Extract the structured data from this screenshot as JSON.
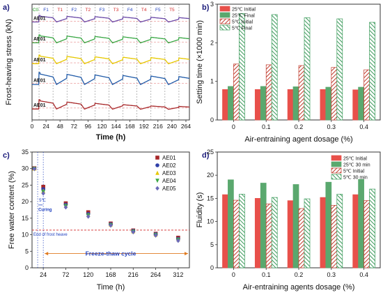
{
  "chart_data": [
    {
      "panel": "a)",
      "type": "line",
      "xlabel": "Time (h)",
      "ylabel": "Frost-heaving stress (kN)",
      "xlim": [
        0,
        270
      ],
      "xticks": [
        0,
        24,
        48,
        72,
        96,
        120,
        144,
        168,
        192,
        216,
        240,
        264
      ],
      "phase_labels": [
        "C0",
        "F1",
        "T1",
        "F2",
        "T2",
        "F3",
        "T3",
        "F4",
        "T4",
        "F5",
        "T5"
      ],
      "phase_colors": [
        "#1a9a1a",
        "#1e3fbf",
        "#d42a2a",
        "#1e3fbf",
        "#d42a2a",
        "#1e3fbf",
        "#d42a2a",
        "#1e3fbf",
        "#d42a2a",
        "#1e3fbf",
        "#d42a2a"
      ],
      "phase_boundaries": [
        12,
        36,
        60,
        84,
        108,
        132,
        156,
        180,
        204,
        228,
        252
      ],
      "series": [
        {
          "name": "AE01",
          "color": "#6b4aa8"
        },
        {
          "name": "AE01",
          "color": "#3aa845"
        },
        {
          "name": "AE01",
          "color": "#e6c800"
        },
        {
          "name": "AE01",
          "color": "#1f5aa8"
        },
        {
          "name": "AE01",
          "color": "#a8282a"
        }
      ]
    },
    {
      "panel": "b)",
      "type": "bar",
      "xlabel": "Air-entraining agent dosage (%)",
      "ylabel": "Setting time (×1000 min)",
      "categories": [
        "0",
        "0.1",
        "0.2",
        "0.3",
        "0.4"
      ],
      "ylim": [
        0,
        3
      ],
      "yticks": [
        0,
        1,
        2,
        3
      ],
      "series": [
        {
          "name": "25℃ Initial",
          "color": "#e8504a",
          "pattern": "solid",
          "values": [
            0.79,
            0.79,
            0.79,
            0.79,
            0.78
          ]
        },
        {
          "name": "25℃ Final",
          "color": "#5aa86e",
          "pattern": "solid",
          "values": [
            0.87,
            0.87,
            0.86,
            0.85,
            0.85
          ]
        },
        {
          "name": "5℃ Initial",
          "color": "#c0392b",
          "pattern": "hatch",
          "values": [
            1.45,
            1.43,
            1.41,
            1.36,
            1.3
          ]
        },
        {
          "name": "5℃ Final",
          "color": "#3a9a5a",
          "pattern": "hatch",
          "values": [
            2.76,
            2.73,
            2.65,
            2.62,
            2.53
          ]
        }
      ]
    },
    {
      "panel": "c)",
      "type": "scatter",
      "xlabel": "Time (h)",
      "ylabel": "Free water content (%)",
      "xlim": [
        0,
        336
      ],
      "ylim": [
        0,
        35
      ],
      "xticks": [
        24,
        72,
        120,
        168,
        216,
        264,
        312
      ],
      "yticks": [
        0,
        5,
        10,
        15,
        20,
        25,
        30,
        35
      ],
      "x": [
        5,
        24,
        72,
        120,
        168,
        216,
        264,
        312
      ],
      "series": [
        {
          "name": "AE01",
          "color": "#a8282a",
          "marker": "square",
          "values": [
            30.1,
            24.5,
            19.5,
            16.8,
            13.4,
            11.3,
            10.3,
            9.1
          ]
        },
        {
          "name": "AE02",
          "color": "#2f3fa8",
          "marker": "circle",
          "values": [
            30.0,
            23.8,
            19.1,
            16.3,
            13.2,
            11.2,
            10.2,
            8.8
          ]
        },
        {
          "name": "AE03",
          "color": "#e6c800",
          "marker": "triangle",
          "values": [
            30.0,
            23.2,
            18.8,
            16.0,
            13.0,
            11.0,
            10.0,
            8.6
          ]
        },
        {
          "name": "AE04",
          "color": "#3aa845",
          "marker": "triangle-down",
          "values": [
            29.9,
            22.9,
            18.6,
            15.8,
            12.9,
            10.9,
            9.9,
            8.4
          ]
        },
        {
          "name": "AE05",
          "color": "#6b6ab8",
          "marker": "diamond",
          "values": [
            29.9,
            22.5,
            18.3,
            15.5,
            12.8,
            10.8,
            9.8,
            8.2
          ]
        }
      ],
      "hline": 11.4,
      "annotations": {
        "curing": "Curing",
        "curing_temp": "5℃",
        "end_frost": "End of frost heave",
        "cycle": "Freeze-thaw cycle"
      }
    },
    {
      "panel": "d)",
      "type": "bar",
      "xlabel": "Air-entraining agents dosage (%)",
      "ylabel": "Fluidity (s)",
      "categories": [
        "0",
        "0.1",
        "0.2",
        "0.3",
        "0.4"
      ],
      "ylim": [
        0,
        25
      ],
      "yticks": [
        0,
        5,
        10,
        15,
        20,
        25
      ],
      "series": [
        {
          "name": "25℃ Initial",
          "color": "#e8504a",
          "pattern": "solid",
          "values": [
            15.8,
            15.0,
            14.5,
            15.2,
            15.8
          ]
        },
        {
          "name": "25℃ 30 min",
          "color": "#5aa86e",
          "pattern": "solid",
          "values": [
            19.0,
            18.3,
            18.0,
            18.5,
            19.1
          ]
        },
        {
          "name": "5℃ Initial",
          "color": "#c0392b",
          "pattern": "hatch",
          "values": [
            14.6,
            13.8,
            12.8,
            13.5,
            14.5
          ]
        },
        {
          "name": "5℃ 30 min",
          "color": "#3a9a5a",
          "pattern": "hatch",
          "values": [
            15.9,
            15.2,
            14.9,
            15.9,
            17.0
          ]
        }
      ]
    }
  ]
}
